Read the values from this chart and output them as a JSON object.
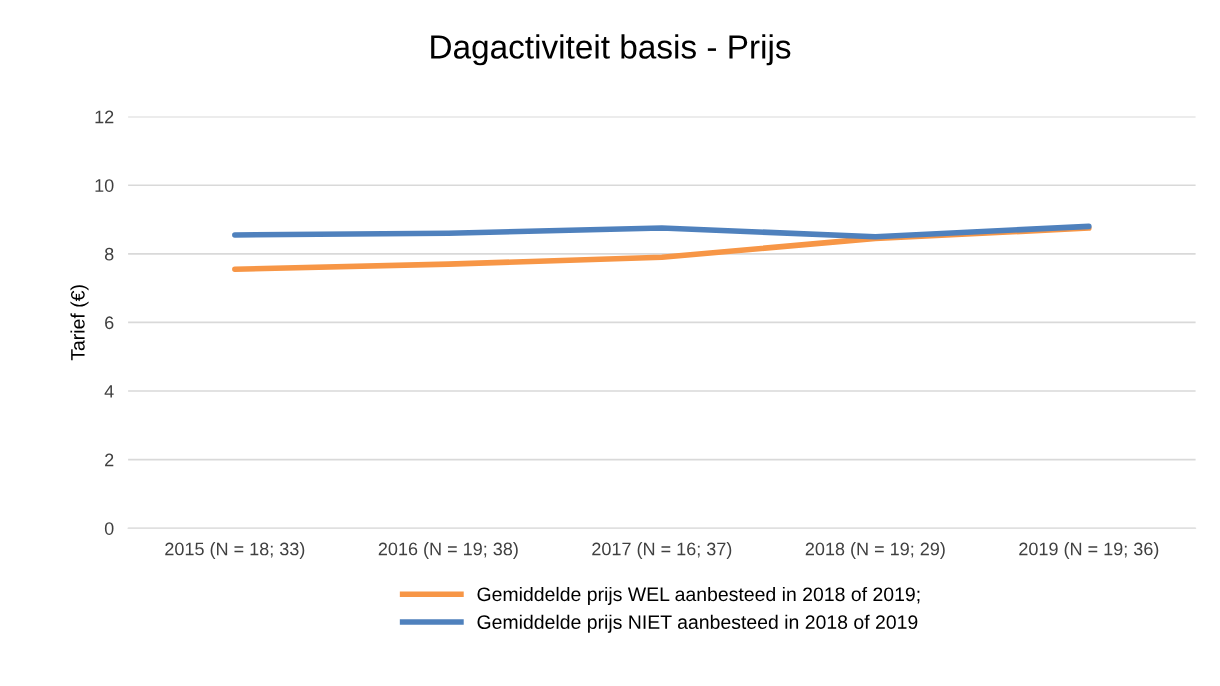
{
  "chart_data": {
    "type": "line",
    "title": "Dagactiviteit basis - Prijs",
    "ylabel": "Tarief (€)",
    "categories": [
      "2015 (N = 18; 33)",
      "2016 (N = 19; 38)",
      "2017 (N = 16; 37)",
      "2018 (N = 19; 29)",
      "2019 (N = 19; 36)"
    ],
    "series": [
      {
        "name": "Gemiddelde prijs WEL aanbesteed in 2018 of 2019;",
        "color": "#f79646",
        "values": [
          7.55,
          7.7,
          7.9,
          8.45,
          8.75
        ]
      },
      {
        "name": "Gemiddelde prijs NIET aanbesteed in 2018 of 2019",
        "color": "#4f81bd",
        "values": [
          8.55,
          8.6,
          8.75,
          8.5,
          8.8
        ]
      }
    ],
    "ylim": [
      0,
      12
    ],
    "yticks": [
      0,
      2,
      4,
      6,
      8,
      10,
      12
    ],
    "grid": "y",
    "legend": "bottom",
    "marker": "none",
    "line_style": "solid"
  }
}
